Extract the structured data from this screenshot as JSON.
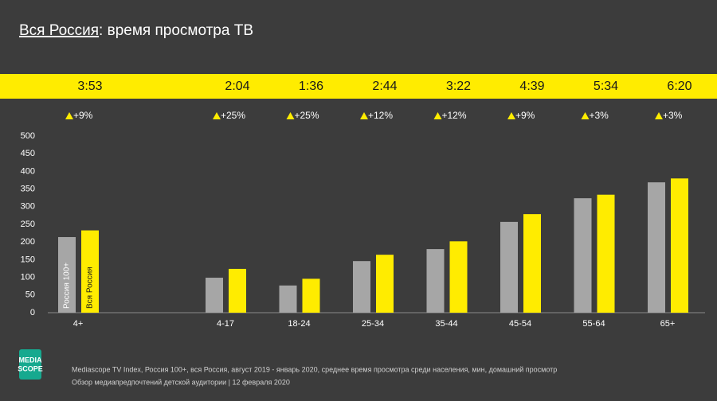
{
  "chart_data": {
    "type": "bar",
    "title_place": "Вся Россия",
    "title_rest": ": время просмотра ТВ",
    "categories": [
      "4+",
      "4-17",
      "18-24",
      "25-34",
      "35-44",
      "45-54",
      "55-64",
      "65+"
    ],
    "series": [
      {
        "name": "Россия 100+",
        "color": "#a6a6a6",
        "values": [
          214,
          99,
          77,
          146,
          180,
          257,
          324,
          369
        ]
      },
      {
        "name": "Вся Россия",
        "color": "#ffec00",
        "values": [
          233,
          124,
          96,
          164,
          202,
          279,
          334,
          380
        ],
        "value_labels": [
          "3:53",
          "2:04",
          "1:36",
          "2:44",
          "3:22",
          "4:39",
          "5:34",
          "6:20"
        ]
      }
    ],
    "change_labels": [
      "+9%",
      "+25%",
      "+25%",
      "+12%",
      "+12%",
      "+9%",
      "+3%",
      "+3%"
    ],
    "ylim": [
      0,
      500
    ],
    "yticks": [
      0,
      50,
      100,
      150,
      200,
      250,
      300,
      350,
      400,
      450,
      500
    ],
    "grid": false
  },
  "footer": {
    "logo": [
      "MEDIA",
      "SCOPE"
    ],
    "source": "Mediascope TV Index, Россия 100+, вся Россия, август 2019 - январь 2020, среднее время просмотра среди населения, мин, домашний просмотр",
    "note": "Обзор медиапредпочтений детской аудитории | 12 февраля 2020"
  }
}
